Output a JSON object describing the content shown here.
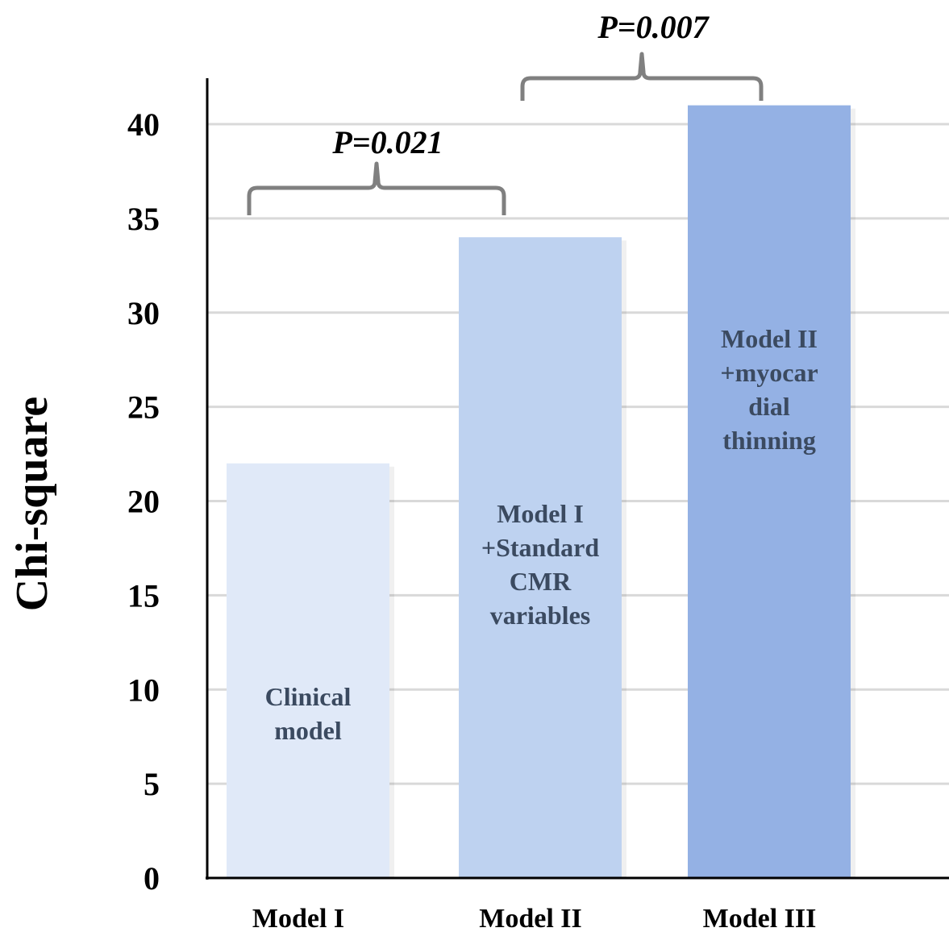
{
  "chart_data": {
    "type": "bar",
    "categories": [
      "Model I",
      "Model II",
      "Model III"
    ],
    "values": [
      22,
      34,
      41
    ],
    "bar_labels": [
      [
        "Clinical",
        "model"
      ],
      [
        "Model I",
        "+Standard",
        "CMR",
        "variables"
      ],
      [
        "Model II",
        "+myocar",
        "dial",
        "thinning"
      ]
    ],
    "colors": [
      "#e0e9f8",
      "#bed2f0",
      "#94b1e4"
    ],
    "ylabel": "Chi-square",
    "xlabel": "",
    "ylim": [
      0,
      40
    ],
    "yticks": [
      0,
      5,
      10,
      15,
      20,
      25,
      30,
      35,
      40
    ],
    "grid": true,
    "annotations": [
      {
        "from": 0,
        "to": 1,
        "text": "P=0.021"
      },
      {
        "from": 1,
        "to": 2,
        "text": "P=0.007"
      }
    ]
  }
}
